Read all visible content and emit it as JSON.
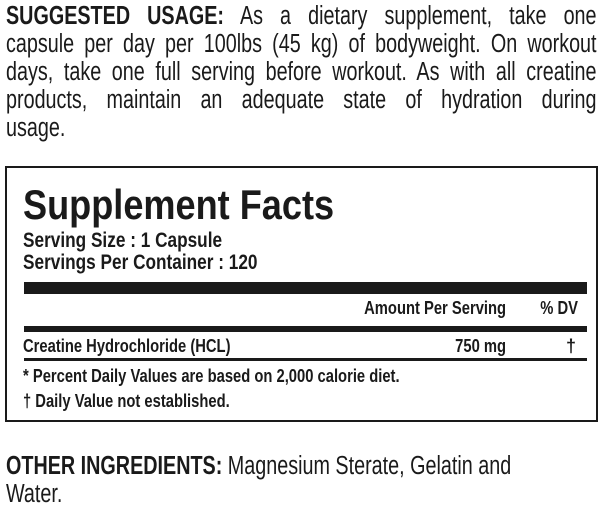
{
  "suggested_usage": {
    "label": "SUGGESTED USAGE:",
    "lines": [
      " As a dietary supplement, take one",
      "capsule per day per 100lbs (45 kg) of bodyweight. On workout",
      "days, take one full serving before workout. As with all creatine",
      "products, maintain an adequate state of hydration during",
      "usage."
    ]
  },
  "facts": {
    "title": "Supplement Facts",
    "serving_size": "Serving Size : 1 Capsule",
    "servings_per_container": "Servings Per Container : 120",
    "header_amount": "Amount Per Serving",
    "header_dv": "% DV",
    "rows": [
      {
        "name": "Creatine Hydrochloride (HCL)",
        "amount": "750 mg",
        "dv": "†"
      }
    ],
    "footnote_1": "* Percent Daily Values are based on 2,000 calorie diet.",
    "footnote_2": "† Daily Value not established."
  },
  "other_ingredients": {
    "label": "OTHER INGREDIENTS:",
    "line_1": " Magnesium Sterate, Gelatin and",
    "line_2": "Water."
  }
}
